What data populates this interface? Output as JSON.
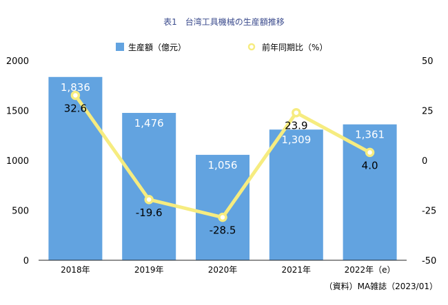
{
  "chart_data": {
    "type": "bar+line",
    "title": "表1　台湾工具機械の生産額推移",
    "categories": [
      "2018年",
      "2019年",
      "2020年",
      "2021年",
      "2022年（e）"
    ],
    "series": [
      {
        "name": "生産額（億元）",
        "type": "bar",
        "axis": "left",
        "values": [
          1836,
          1476,
          1056,
          1309,
          1361
        ],
        "labels": [
          "1,836",
          "1,476",
          "1,056",
          "1,309",
          "1,361"
        ],
        "color": "#62a3e0"
      },
      {
        "name": "前年同期比（%）",
        "type": "line",
        "axis": "right",
        "values": [
          32.6,
          -19.6,
          -28.5,
          23.9,
          4.0
        ],
        "labels": [
          "32.6",
          "-19.6",
          "-28.5",
          "23.9",
          "4.0"
        ],
        "color": "#f6ec80"
      }
    ],
    "left_axis": {
      "ylim": [
        0,
        2000
      ],
      "ticks": [
        "0",
        "500",
        "1000",
        "1500",
        "2000"
      ]
    },
    "right_axis": {
      "ylim": [
        -50,
        50
      ],
      "ticks": [
        "-50",
        "-25",
        "0",
        "25",
        "50"
      ]
    },
    "legend_placement": "top",
    "grid": false,
    "source": "（資料）MA雑誌（2023/01）"
  },
  "colors": {
    "title": "#3a4a8c",
    "bar_label": "#ffffff"
  }
}
